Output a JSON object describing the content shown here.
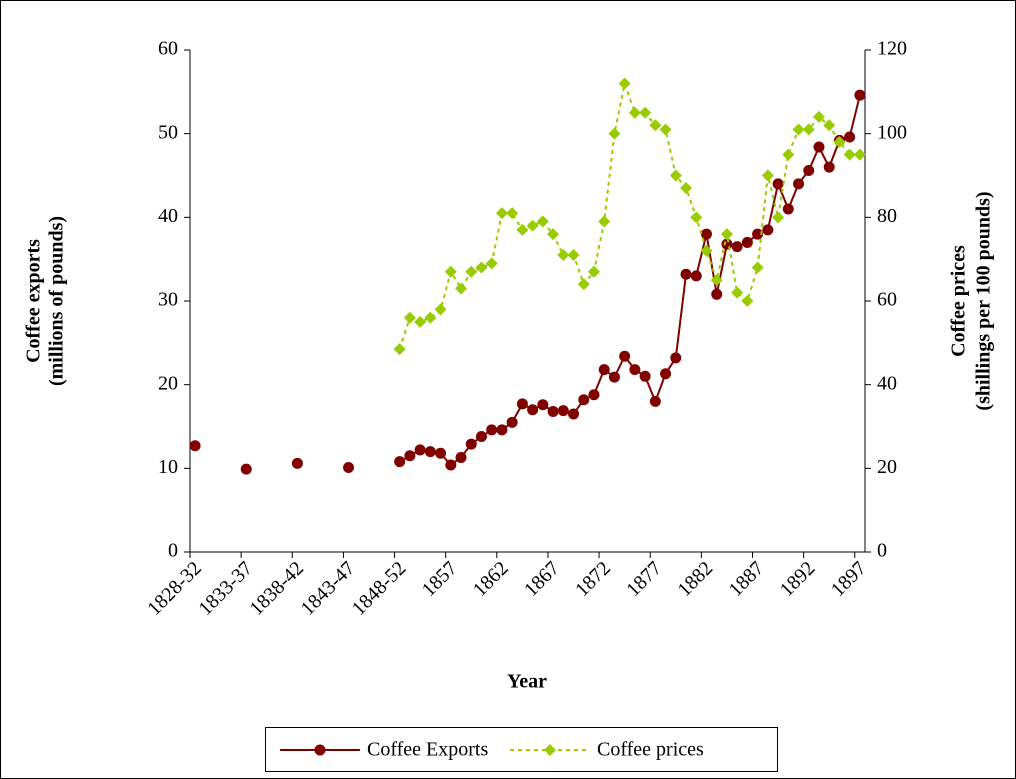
{
  "chart_data": {
    "type": "line",
    "xlabel": "Year",
    "ylabel": [
      "Coffee exports",
      "(millions of pounds)"
    ],
    "y2label": [
      "Coffee prices",
      "(shillings per 100 pounds)"
    ],
    "categories": [
      "1828-32",
      null,
      null,
      null,
      null,
      "1833-37",
      null,
      null,
      null,
      null,
      "1838-42",
      null,
      null,
      null,
      null,
      "1843-47",
      null,
      null,
      null,
      null,
      "1848-52",
      null,
      null,
      null,
      null,
      "1857",
      null,
      null,
      null,
      null,
      "1862",
      null,
      null,
      null,
      null,
      "1867",
      null,
      null,
      null,
      null,
      "1872",
      null,
      null,
      null,
      null,
      "1877",
      null,
      null,
      null,
      null,
      "1882",
      null,
      null,
      null,
      null,
      "1887",
      null,
      null,
      null,
      null,
      "1892",
      null,
      null,
      null,
      null,
      "1897"
    ],
    "series": [
      {
        "name": "Coffee Exports",
        "color": "#800000",
        "marker": "circle",
        "dashed": false,
        "values": [
          12.7,
          null,
          null,
          null,
          null,
          9.9,
          null,
          null,
          null,
          null,
          10.6,
          null,
          null,
          null,
          null,
          10.1,
          null,
          null,
          null,
          null,
          10.8,
          11.5,
          12.2,
          12.0,
          11.8,
          10.4,
          11.3,
          12.9,
          13.8,
          14.6,
          14.6,
          15.5,
          17.7,
          17.0,
          17.6,
          16.8,
          16.9,
          16.5,
          18.2,
          18.8,
          21.8,
          20.9,
          23.4,
          21.8,
          21.0,
          18.0,
          21.3,
          23.2,
          33.2,
          33.0,
          38.0,
          30.8,
          36.8,
          36.5,
          37.0,
          38.0,
          38.5,
          44.0,
          41.0,
          44.0,
          45.6,
          48.4,
          46.0,
          49.2,
          49.6,
          54.6
        ]
      },
      {
        "name": "Coffee prices",
        "color": "#99cc00",
        "marker": "diamond",
        "dashed": true,
        "axis": "y2",
        "values": [
          null,
          null,
          null,
          null,
          null,
          null,
          null,
          null,
          null,
          null,
          null,
          null,
          null,
          null,
          null,
          null,
          null,
          null,
          null,
          null,
          48.5,
          56,
          55,
          56,
          58,
          67,
          63,
          67,
          68,
          69,
          81,
          81,
          77,
          78,
          79,
          76,
          71,
          71,
          64,
          67,
          79,
          100,
          112,
          105,
          105,
          102,
          101,
          90,
          87,
          80,
          72,
          65,
          76,
          62,
          60,
          68,
          90,
          80,
          95,
          101,
          101,
          104,
          102,
          98,
          95,
          95
        ]
      }
    ],
    "ylim": [
      0,
      60
    ],
    "yticks": [
      0,
      10,
      20,
      30,
      40,
      50,
      60
    ],
    "y2lim": [
      0,
      120
    ],
    "y2ticks": [
      0,
      20,
      40,
      60,
      80,
      100,
      120
    ],
    "grid": false,
    "legend": "bottom"
  }
}
